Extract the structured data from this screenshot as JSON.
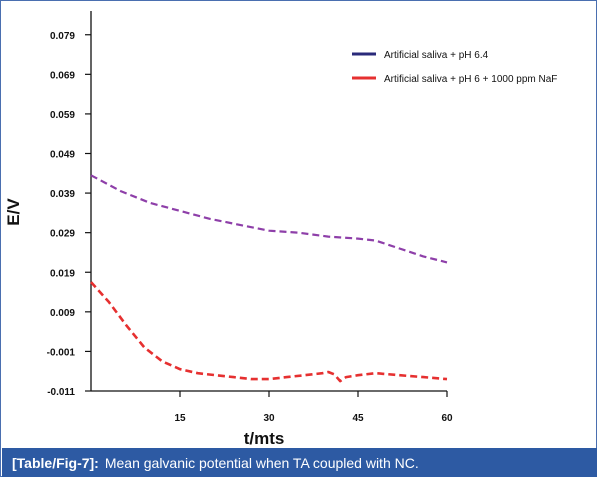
{
  "caption": {
    "label": "[Table/Fig-7]:",
    "text": "Mean galvanic potential when TA coupled with NC."
  },
  "chart_data": {
    "type": "line",
    "title": "",
    "xlabel": "t/mts",
    "ylabel": "E/V",
    "xlim": [
      0,
      60
    ],
    "ylim": [
      -0.011,
      0.085
    ],
    "x_ticks": [
      15,
      30,
      45,
      60
    ],
    "y_ticks": [
      0.079,
      0.069,
      0.059,
      0.049,
      0.039,
      0.029,
      0.019,
      0.009,
      -0.001,
      -0.011
    ],
    "y_tick_labels": [
      "0.079",
      "0.069",
      "0.059",
      "0.049",
      "0.039",
      "0.029",
      "0.019",
      "0.009",
      "-0.001",
      "-0.011"
    ],
    "grid": false,
    "legend_position": "top-right",
    "series": [
      {
        "name": "Artificial saliva + pH 6.4",
        "color": "#2a2a7a",
        "line_color": "#8e3fa9",
        "dashed": true,
        "x": [
          0,
          5,
          10,
          15,
          20,
          25,
          30,
          35,
          40,
          45,
          48,
          52,
          56,
          60
        ],
        "y": [
          0.0435,
          0.0395,
          0.0365,
          0.0345,
          0.0325,
          0.031,
          0.0295,
          0.029,
          0.028,
          0.0275,
          0.027,
          0.025,
          0.023,
          0.0215
        ]
      },
      {
        "name": "Artificial saliva + pH 6 + 1000 ppm NaF",
        "color": "#e63030",
        "line_color": "#e63030",
        "dashed": true,
        "x": [
          0,
          3,
          6,
          9,
          12,
          15,
          18,
          21,
          24,
          27,
          30,
          33,
          36,
          39,
          40,
          41,
          42,
          43,
          45,
          48,
          52,
          56,
          60
        ],
        "y": [
          0.0165,
          0.0115,
          0.0055,
          0.0,
          -0.0035,
          -0.0055,
          -0.0065,
          -0.007,
          -0.0075,
          -0.008,
          -0.008,
          -0.0075,
          -0.007,
          -0.0065,
          -0.0062,
          -0.0068,
          -0.0085,
          -0.0075,
          -0.007,
          -0.0065,
          -0.007,
          -0.0075,
          -0.008
        ]
      }
    ]
  }
}
